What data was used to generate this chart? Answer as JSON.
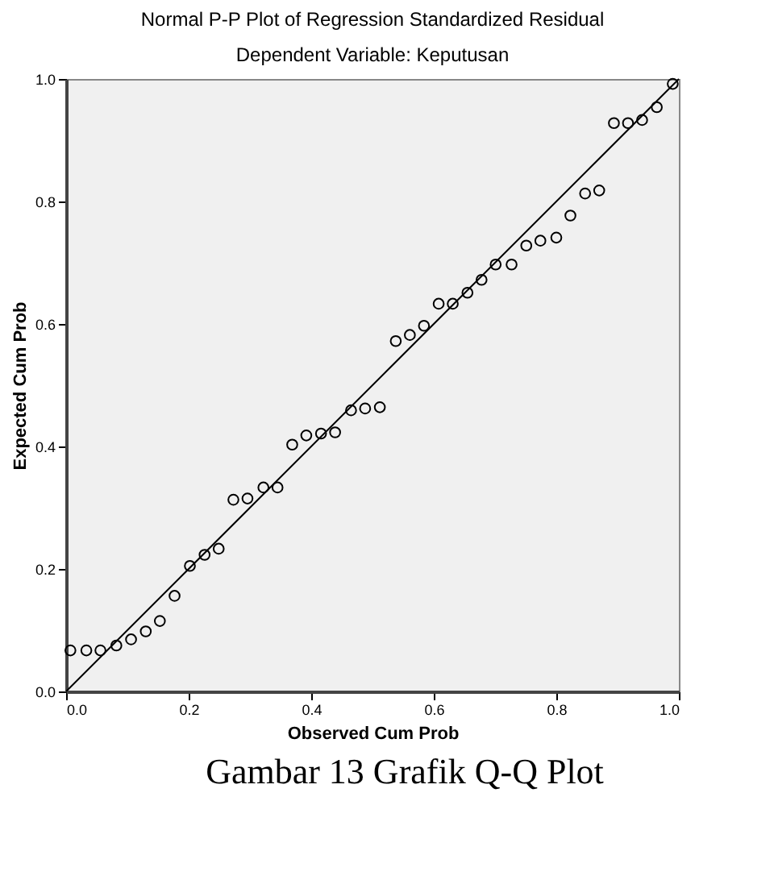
{
  "chart_data": {
    "type": "scatter",
    "title": "Normal P-P Plot of Regression Standardized Residual",
    "subtitle": "Dependent Variable: Keputusan",
    "xlabel": "Observed Cum Prob",
    "ylabel": "Expected Cum Prob",
    "x": [
      0.007,
      0.033,
      0.056,
      0.082,
      0.106,
      0.13,
      0.153,
      0.177,
      0.202,
      0.226,
      0.249,
      0.273,
      0.296,
      0.322,
      0.345,
      0.369,
      0.392,
      0.416,
      0.439,
      0.465,
      0.488,
      0.512,
      0.538,
      0.561,
      0.584,
      0.608,
      0.631,
      0.655,
      0.678,
      0.701,
      0.727,
      0.751,
      0.774,
      0.8,
      0.823,
      0.847,
      0.87,
      0.894,
      0.917,
      0.94,
      0.964,
      0.99
    ],
    "series": [
      {
        "color": "#000000",
        "marker": "circle",
        "values": [
          0.067,
          0.067,
          0.067,
          0.075,
          0.085,
          0.098,
          0.115,
          0.156,
          0.205,
          0.223,
          0.233,
          0.313,
          0.315,
          0.333,
          0.333,
          0.403,
          0.418,
          0.421,
          0.423,
          0.459,
          0.462,
          0.464,
          0.572,
          0.582,
          0.597,
          0.633,
          0.633,
          0.651,
          0.672,
          0.697,
          0.697,
          0.728,
          0.736,
          0.741,
          0.777,
          0.813,
          0.818,
          0.928,
          0.928,
          0.933,
          0.954,
          0.992
        ]
      },
      {
        "type": "line",
        "color": "#000000",
        "line_style": "solid",
        "x": [
          0,
          1
        ],
        "values": [
          0,
          1
        ]
      }
    ],
    "xlim": [
      0,
      1
    ],
    "ylim": [
      0,
      1
    ],
    "xticks": [
      {
        "value": 0,
        "label": "0.0"
      },
      {
        "value": 0.2,
        "label": "0.2"
      },
      {
        "value": 0.4,
        "label": "0.4"
      },
      {
        "value": 0.6,
        "label": "0.6"
      },
      {
        "value": 0.8,
        "label": "0.8"
      },
      {
        "value": 1,
        "label": "1.0"
      }
    ],
    "yticks": [
      {
        "value": 0,
        "label": "0.0"
      },
      {
        "value": 0.2,
        "label": "0.2"
      },
      {
        "value": 0.4,
        "label": "0.4"
      },
      {
        "value": 0.6,
        "label": "0.6"
      },
      {
        "value": 0.8,
        "label": "0.8"
      },
      {
        "value": 1,
        "label": "1.0"
      }
    ],
    "grid": false,
    "annotations": [
      "Gambar  13 Grafik Q-Q Plot"
    ]
  }
}
